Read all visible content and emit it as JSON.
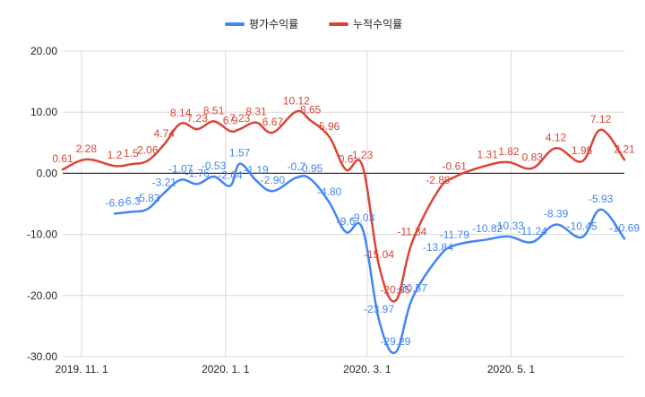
{
  "chart_data": {
    "type": "line",
    "ylim": [
      -30,
      20
    ],
    "y_ticks": [
      "20.00",
      "10.00",
      "0.00",
      "-10.00",
      "-20.00",
      "-30.00"
    ],
    "x_range": [
      "2019-10-24",
      "2020-06-18"
    ],
    "x_ticks": [
      {
        "date": "2019-11-01",
        "label": "2019. 11. 1"
      },
      {
        "date": "2020-01-01",
        "label": "2020. 1. 1"
      },
      {
        "date": "2020-03-01",
        "label": "2020. 3. 1"
      },
      {
        "date": "2020-05-01",
        "label": "2020. 5. 1"
      }
    ],
    "grid": true,
    "legend_position": "top",
    "series": [
      {
        "name": "평가수익률",
        "color": "#4285f4",
        "points": [
          {
            "x": "2019-11-15",
            "y": -6.6,
            "label": "-6.6"
          },
          {
            "x": "2019-11-22",
            "y": -6.3,
            "label": "-6.3"
          },
          {
            "x": "2019-11-29",
            "y": -5.83,
            "label": "-5.83"
          },
          {
            "x": "2019-12-06",
            "y": -3.21,
            "label": "-3.21"
          },
          {
            "x": "2019-12-13",
            "y": -1.07,
            "label": "-1.07"
          },
          {
            "x": "2019-12-20",
            "y": -1.76,
            "label": "-1.76"
          },
          {
            "x": "2019-12-27",
            "y": -0.53,
            "label": "-0.53"
          },
          {
            "x": "2020-01-03",
            "y": -2.04,
            "label": "-2.04"
          },
          {
            "x": "2020-01-07",
            "y": 1.57,
            "label": "1.57"
          },
          {
            "x": "2020-01-14",
            "y": -1.19,
            "label": "-1.19"
          },
          {
            "x": "2020-01-21",
            "y": -2.9,
            "label": "-2.90"
          },
          {
            "x": "2020-01-31",
            "y": -0.7,
            "label": "-0.7"
          },
          {
            "x": "2020-02-06",
            "y": -0.95,
            "label": "-0.95"
          },
          {
            "x": "2020-02-14",
            "y": -4.8,
            "label": "-4.80"
          },
          {
            "x": "2020-02-21",
            "y": -9.6,
            "label": "-9.6"
          },
          {
            "x": "2020-02-28",
            "y": -9.03,
            "label": "-9.03"
          },
          {
            "x": "2020-03-06",
            "y": -23.97,
            "label": "-23.97"
          },
          {
            "x": "2020-03-13",
            "y": -29.29,
            "label": "-29.29"
          },
          {
            "x": "2020-03-20",
            "y": -20.57,
            "label": "-20.57"
          },
          {
            "x": "2020-03-31",
            "y": -13.84,
            "label": "-13.84"
          },
          {
            "x": "2020-04-07",
            "y": -11.79,
            "label": "-11.79"
          },
          {
            "x": "2020-04-21",
            "y": -10.82,
            "label": "-10.82"
          },
          {
            "x": "2020-04-30",
            "y": -10.33,
            "label": "-10.33"
          },
          {
            "x": "2020-05-10",
            "y": -11.24,
            "label": "-11.24"
          },
          {
            "x": "2020-05-20",
            "y": -8.39,
            "label": "-8.39"
          },
          {
            "x": "2020-05-31",
            "y": -10.45,
            "label": "-10.45"
          },
          {
            "x": "2020-06-08",
            "y": -5.93,
            "label": "-5.93"
          },
          {
            "x": "2020-06-18",
            "y": -10.69,
            "label": "-10.69"
          }
        ]
      },
      {
        "name": "누적수익률",
        "color": "#db4437",
        "points": [
          {
            "x": "2019-10-24",
            "y": 0.61,
            "label": "0.61"
          },
          {
            "x": "2019-11-03",
            "y": 2.28,
            "label": "2.28"
          },
          {
            "x": "2019-11-15",
            "y": 1.2,
            "label": "1.2"
          },
          {
            "x": "2019-11-22",
            "y": 1.5,
            "label": "1.5"
          },
          {
            "x": "2019-11-29",
            "y": 2.06,
            "label": "2.06"
          },
          {
            "x": "2019-12-06",
            "y": 4.74,
            "label": "4.74"
          },
          {
            "x": "2019-12-13",
            "y": 8.14,
            "label": "8.14"
          },
          {
            "x": "2019-12-20",
            "y": 7.23,
            "label": "7.23"
          },
          {
            "x": "2019-12-27",
            "y": 8.51,
            "label": "8.51"
          },
          {
            "x": "2020-01-03",
            "y": 6.9,
            "label": "6.9"
          },
          {
            "x": "2020-01-07",
            "y": 7.23,
            "label": "7.23"
          },
          {
            "x": "2020-01-14",
            "y": 8.31,
            "label": "8.31"
          },
          {
            "x": "2020-01-21",
            "y": 6.67,
            "label": "6.67"
          },
          {
            "x": "2020-01-31",
            "y": 10.12,
            "label": "10.12"
          },
          {
            "x": "2020-02-06",
            "y": 8.65,
            "label": "8.65"
          },
          {
            "x": "2020-02-14",
            "y": 5.96,
            "label": "5.96"
          },
          {
            "x": "2020-02-21",
            "y": 0.6,
            "label": "0.6"
          },
          {
            "x": "2020-02-28",
            "y": 1.23,
            "label": "1.23"
          },
          {
            "x": "2020-03-06",
            "y": -15.04,
            "label": "-15.04"
          },
          {
            "x": "2020-03-13",
            "y": -20.85,
            "label": "-20.85"
          },
          {
            "x": "2020-03-20",
            "y": -11.34,
            "label": "-11.34"
          },
          {
            "x": "2020-03-31",
            "y": -2.89,
            "label": "-2.89"
          },
          {
            "x": "2020-04-07",
            "y": -0.61,
            "label": "-0.61"
          },
          {
            "x": "2020-04-21",
            "y": 1.31,
            "label": "1.31"
          },
          {
            "x": "2020-04-30",
            "y": 1.82,
            "label": "1.82"
          },
          {
            "x": "2020-05-10",
            "y": 0.83,
            "label": "0.83"
          },
          {
            "x": "2020-05-20",
            "y": 4.12,
            "label": "4.12"
          },
          {
            "x": "2020-05-31",
            "y": 1.95,
            "label": "1.95"
          },
          {
            "x": "2020-06-08",
            "y": 7.12,
            "label": "7.12"
          },
          {
            "x": "2020-06-18",
            "y": 2.21,
            "label": "2.21"
          }
        ]
      }
    ]
  }
}
